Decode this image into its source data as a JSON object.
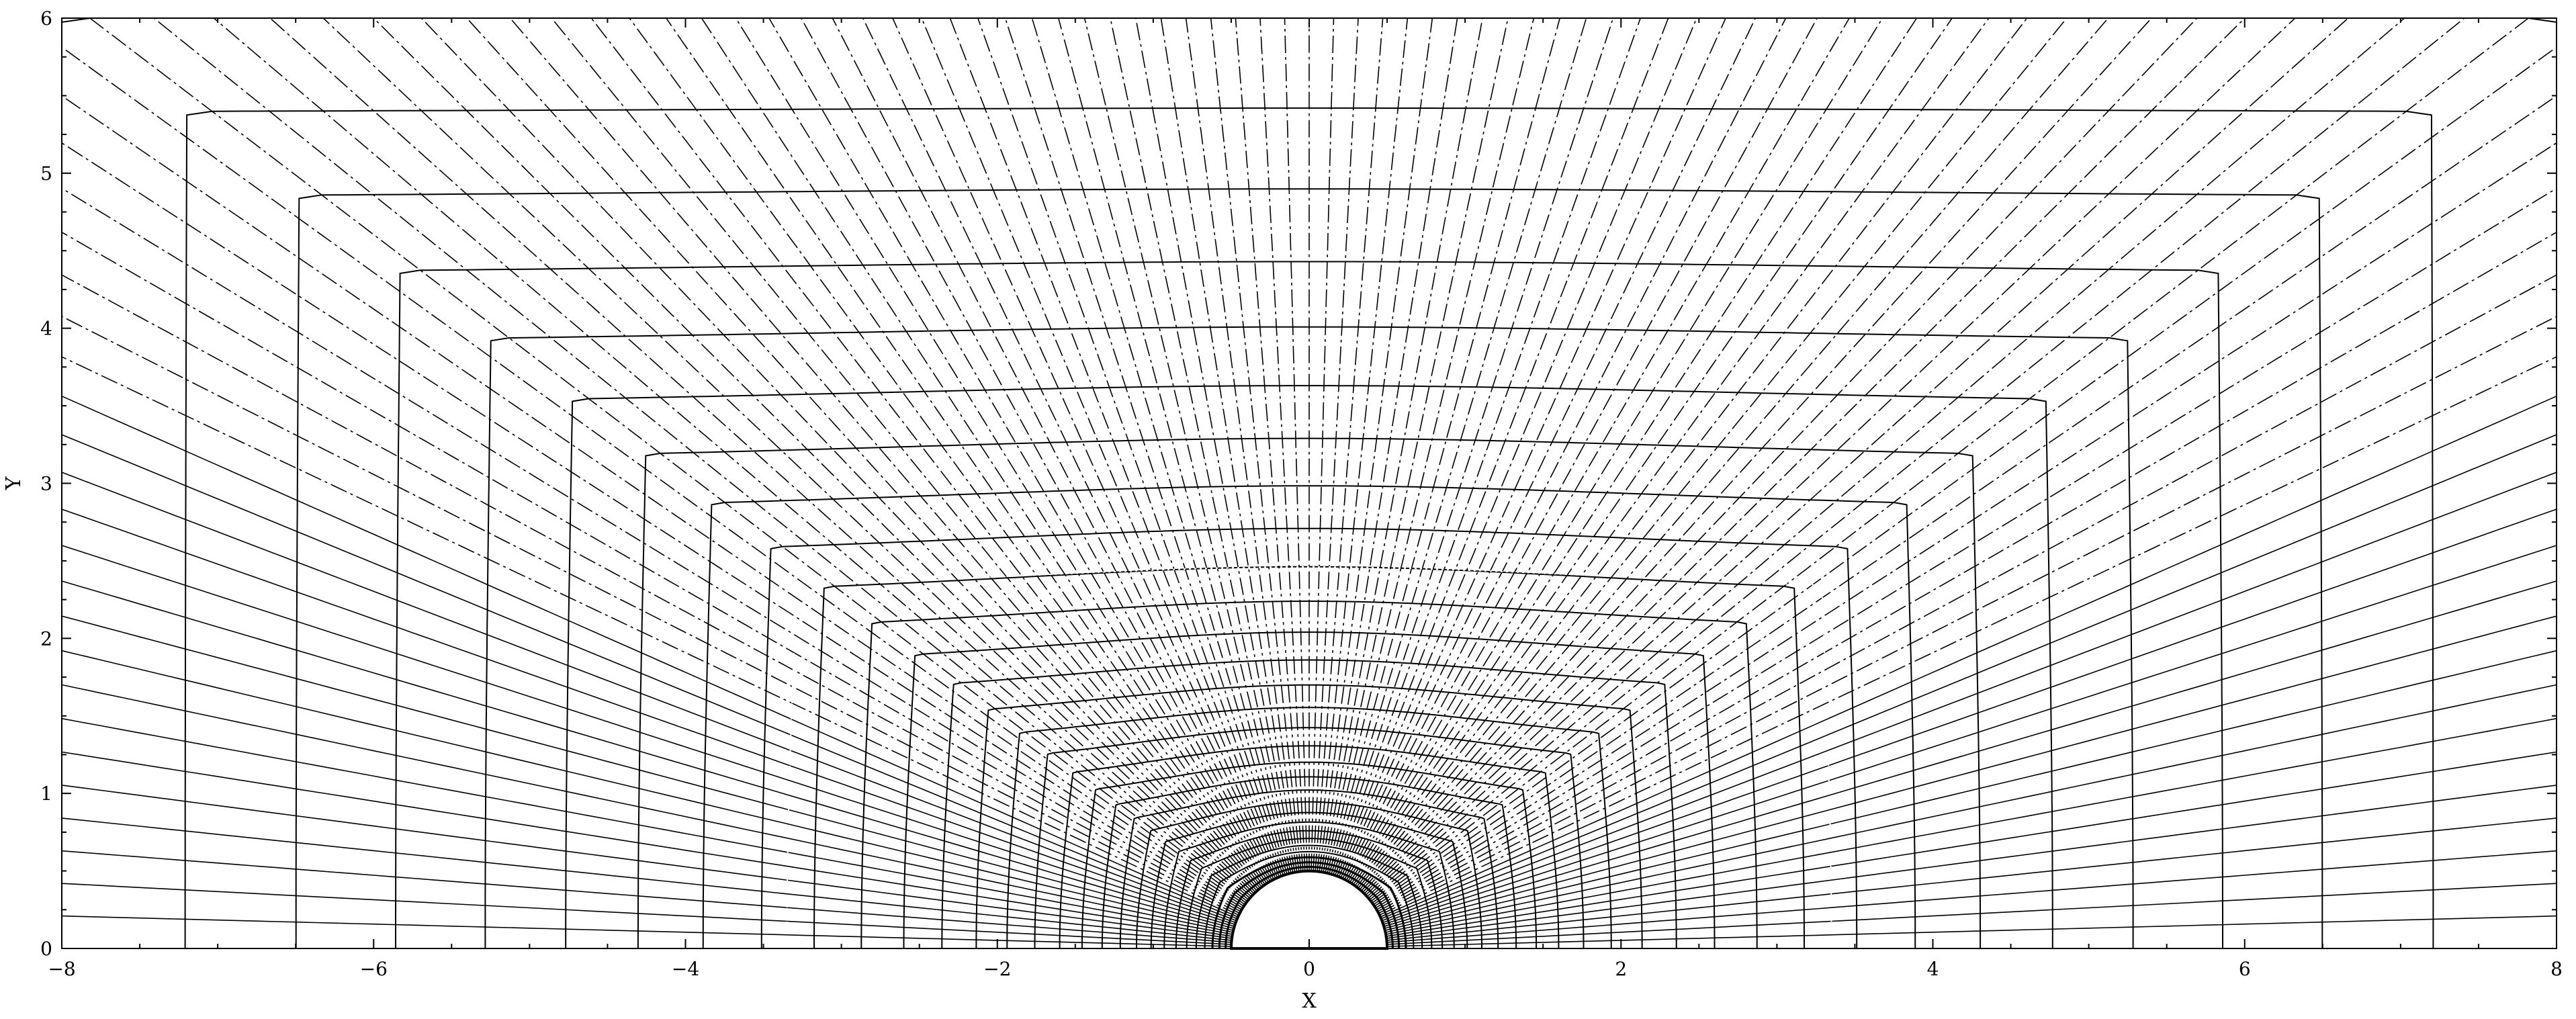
{
  "chart_data": {
    "type": "line",
    "title": "",
    "xlabel": "X",
    "ylabel": "Y",
    "xlim": [
      -8,
      8
    ],
    "ylim": [
      0,
      6
    ],
    "xticks": [
      -8,
      -6,
      -4,
      -2,
      0,
      2,
      4,
      6,
      8
    ],
    "xtick_labels": [
      "−8",
      "−6",
      "−4",
      "−2",
      "0",
      "2",
      "4",
      "6",
      "8"
    ],
    "yticks": [
      0,
      1,
      2,
      3,
      4,
      5,
      6
    ],
    "ytick_labels": [
      "0",
      "1",
      "2",
      "3",
      "4",
      "5",
      "6"
    ],
    "grid": false,
    "body_radius": 0.5,
    "grid_lines": {
      "radial_count": 121,
      "stretch_count": 30,
      "outer_boundary": "rectangle x∈[-8,8], y∈[0,6]",
      "description": "Structured mesh around a half-circle body; grid lines radiate from body, level curves blend from circle to rectangle"
    },
    "series": [
      {
        "name": "grid-radial-lines",
        "style": "dashed"
      },
      {
        "name": "grid-level-curves",
        "style": "solid"
      }
    ]
  },
  "colors": {
    "line": "#000000",
    "background": "#ffffff",
    "highlight": "#ffffff"
  }
}
